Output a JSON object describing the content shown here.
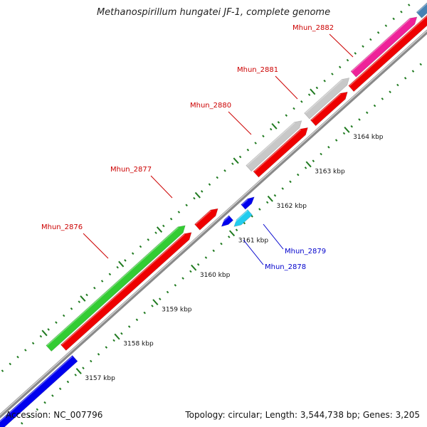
{
  "title": "Methanospirillum hungatei JF-1, complete genome",
  "footer": {
    "accession": "Accession: NC_007796",
    "stats": "Topology: circular; Length: 3,544,738 bp; Genes: 3,205"
  },
  "colors": {
    "backbone": "#8a8a8a",
    "tick": "#1f7a1f",
    "label_forward": "#cc0000",
    "label_reverse": "#0000cc",
    "cds": "#ee0000",
    "blue_gene": "#0000ee",
    "cyan_gene": "#22ccee",
    "green_gene": "#33cc33",
    "pink_gene": "#ee2299",
    "gray_gene": "#c8c8c8",
    "steel_gene": "#4682b4"
  },
  "ticks": [
    {
      "kbp": 3157,
      "label": "3157 kbp"
    },
    {
      "kbp": 3158,
      "label": "3158 kbp"
    },
    {
      "kbp": 3159,
      "label": "3159 kbp"
    },
    {
      "kbp": 3160,
      "label": "3160 kbp"
    },
    {
      "kbp": 3161,
      "label": "3161 kbp"
    },
    {
      "kbp": 3162,
      "label": "3162 kbp"
    },
    {
      "kbp": 3163,
      "label": "3163 kbp"
    },
    {
      "kbp": 3164,
      "label": "3164 kbp"
    }
  ],
  "genes": [
    {
      "label": "Mhun_2876",
      "strand": "forward",
      "color_key": "green_gene"
    },
    {
      "label": "Mhun_2877",
      "strand": "forward",
      "color_key": "cds"
    },
    {
      "label": "Mhun_2880",
      "strand": "forward",
      "color_key": "gray_gene"
    },
    {
      "label": "Mhun_2881",
      "strand": "forward",
      "color_key": "gray_gene"
    },
    {
      "label": "Mhun_2882",
      "strand": "forward",
      "color_key": "pink_gene"
    },
    {
      "label": "Mhun_2879",
      "strand": "reverse",
      "color_key": "blue_gene"
    },
    {
      "label": "Mhun_2878",
      "strand": "reverse",
      "color_key": "cyan_gene"
    }
  ]
}
